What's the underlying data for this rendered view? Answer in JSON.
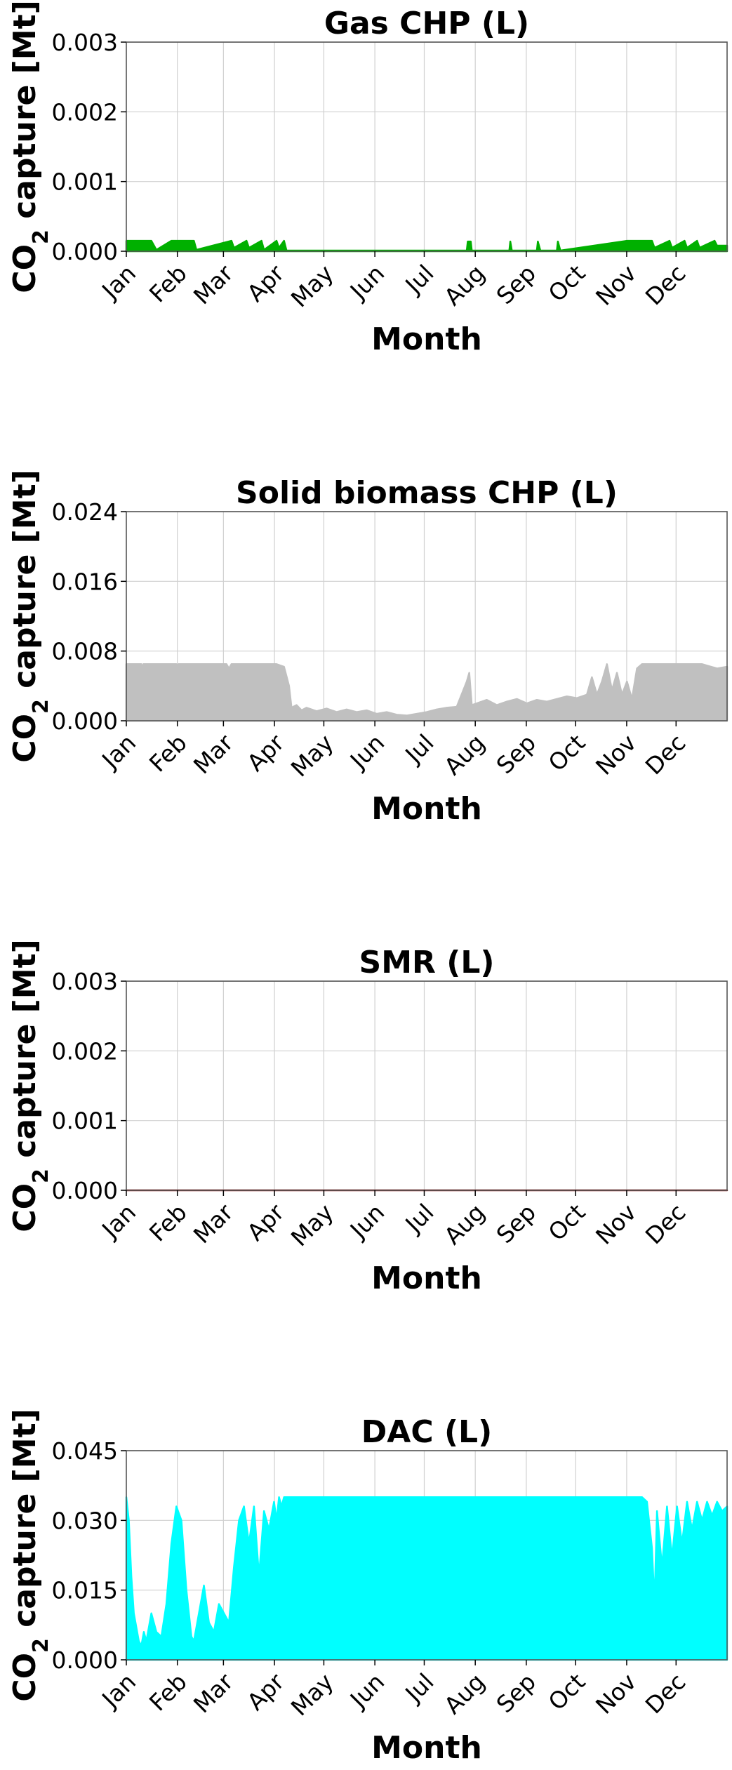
{
  "chart_data": [
    {
      "type": "area",
      "title": "Gas CHP (L)",
      "xlabel": "Month",
      "ylabel_parts": [
        "CO",
        "2",
        " capture [Mt]"
      ],
      "x_ticks": [
        "Jan",
        "Feb",
        "Mar",
        "Apr",
        "May",
        "Jun",
        "Jul",
        "Aug",
        "Sep",
        "Oct",
        "Nov",
        "Dec"
      ],
      "y_ticks": [
        "0.000",
        "0.001",
        "0.002",
        "0.003"
      ],
      "ylim": [
        0,
        0.003
      ],
      "grid": true,
      "color": "#00b000",
      "series": [
        {
          "x": [
            0,
            0.5,
            0.6,
            0.9,
            1.0,
            1.35,
            1.4,
            2.1,
            2.15,
            2.4,
            2.45,
            2.7,
            2.75,
            3.0,
            3.05,
            3.15,
            3.2,
            6.8,
            6.82,
            6.88,
            6.9,
            7.65,
            7.67,
            7.7,
            8.2,
            8.22,
            8.27,
            8.6,
            8.62,
            8.67,
            10.0,
            10.05,
            10.5,
            10.55,
            10.85,
            10.9,
            11.15,
            11.2,
            11.4,
            11.45,
            11.75,
            11.8,
            12.0
          ],
          "y": [
            0.00015,
            0.00015,
            2e-05,
            0.00015,
            0.00015,
            0.00015,
            2e-05,
            0.00015,
            5e-05,
            0.00015,
            5e-05,
            0.00015,
            2e-05,
            0.00015,
            5e-05,
            0.00015,
            1e-05,
            1e-05,
            0.00014,
            0.00014,
            1e-05,
            1e-05,
            0.00014,
            1e-05,
            1e-05,
            0.00014,
            1e-05,
            1e-05,
            0.00014,
            1e-05,
            0.00015,
            0.00015,
            0.00015,
            5e-05,
            0.00015,
            5e-05,
            0.00015,
            5e-05,
            0.00015,
            5e-05,
            0.00015,
            8e-05,
            8e-05
          ]
        }
      ]
    },
    {
      "type": "area",
      "title": "Solid biomass CHP (L)",
      "xlabel": "Month",
      "ylabel_parts": [
        "CO",
        "2",
        " capture [Mt]"
      ],
      "x_ticks": [
        "Jan",
        "Feb",
        "Mar",
        "Apr",
        "May",
        "Jun",
        "Jul",
        "Aug",
        "Sep",
        "Oct",
        "Nov",
        "Dec"
      ],
      "y_ticks": [
        "0.000",
        "0.008",
        "0.016",
        "0.024"
      ],
      "ylim": [
        0,
        0.024
      ],
      "grid": true,
      "color": "#c0c0c0",
      "series": [
        {
          "x": [
            0,
            0.3,
            0.32,
            0.34,
            1.0,
            1.02,
            1.04,
            2.0,
            2.05,
            2.1,
            3.0,
            3.15,
            3.25,
            3.3,
            3.4,
            3.5,
            3.6,
            3.8,
            4.0,
            4.2,
            4.4,
            4.6,
            4.8,
            5.0,
            5.2,
            5.4,
            5.6,
            5.8,
            6.0,
            6.2,
            6.4,
            6.6,
            6.8,
            6.85,
            6.9,
            7.0,
            7.2,
            7.4,
            7.6,
            7.8,
            8.0,
            8.2,
            8.4,
            8.6,
            8.8,
            9.0,
            9.2,
            9.3,
            9.4,
            9.5,
            9.6,
            9.7,
            9.8,
            9.9,
            10.0,
            10.1,
            10.2,
            10.3,
            10.6,
            10.9,
            11.2,
            11.5,
            11.8,
            12.0
          ],
          "y": [
            0.0065,
            0.0065,
            0.0058,
            0.0065,
            0.0065,
            0.006,
            0.0065,
            0.0065,
            0.006,
            0.0065,
            0.0065,
            0.0062,
            0.004,
            0.0015,
            0.0018,
            0.0012,
            0.0015,
            0.0011,
            0.0014,
            0.001,
            0.0013,
            0.001,
            0.0012,
            0.0008,
            0.001,
            0.0007,
            0.0006,
            0.0008,
            0.001,
            0.0013,
            0.0015,
            0.0016,
            0.0045,
            0.0055,
            0.0018,
            0.002,
            0.0024,
            0.0018,
            0.0022,
            0.0025,
            0.002,
            0.0024,
            0.0022,
            0.0025,
            0.0028,
            0.0026,
            0.003,
            0.005,
            0.003,
            0.0045,
            0.0065,
            0.0035,
            0.0055,
            0.003,
            0.0045,
            0.0025,
            0.006,
            0.0065,
            0.0065,
            0.0065,
            0.0065,
            0.0065,
            0.006,
            0.0062
          ]
        }
      ]
    },
    {
      "type": "area",
      "title": "SMR (L)",
      "xlabel": "Month",
      "ylabel_parts": [
        "CO",
        "2",
        " capture [Mt]"
      ],
      "x_ticks": [
        "Jan",
        "Feb",
        "Mar",
        "Apr",
        "May",
        "Jun",
        "Jul",
        "Aug",
        "Sep",
        "Oct",
        "Nov",
        "Dec"
      ],
      "y_ticks": [
        "0.000",
        "0.001",
        "0.002",
        "0.003"
      ],
      "ylim": [
        0,
        0.003
      ],
      "grid": true,
      "color": "#8b1a1a",
      "series": [
        {
          "x": [
            0,
            12
          ],
          "y": [
            0,
            0
          ]
        }
      ]
    },
    {
      "type": "area",
      "title": "DAC (L)",
      "xlabel": "Month",
      "ylabel_parts": [
        "CO",
        "2",
        " capture [Mt]"
      ],
      "x_ticks": [
        "Jan",
        "Feb",
        "Mar",
        "Apr",
        "May",
        "Jun",
        "Jul",
        "Aug",
        "Sep",
        "Oct",
        "Nov",
        "Dec"
      ],
      "y_ticks": [
        "0.000",
        "0.015",
        "0.030",
        "0.045"
      ],
      "ylim": [
        0,
        0.045
      ],
      "grid": true,
      "color": "#00ffff",
      "series": [
        {
          "x": [
            0,
            0.05,
            0.1,
            0.15,
            0.2,
            0.25,
            0.3,
            0.35,
            0.4,
            0.5,
            0.6,
            0.7,
            0.8,
            0.9,
            1.0,
            1.1,
            1.2,
            1.3,
            1.35,
            1.45,
            1.55,
            1.65,
            1.75,
            1.85,
            1.95,
            2.05,
            2.15,
            2.25,
            2.35,
            2.45,
            2.55,
            2.65,
            2.75,
            2.85,
            2.95,
            3.0,
            3.05,
            3.1,
            3.15,
            3.2,
            4.0,
            5.0,
            6.0,
            7.0,
            8.0,
            9.0,
            10.0,
            10.3,
            10.4,
            10.5,
            10.55,
            10.6,
            10.7,
            10.8,
            10.9,
            11.0,
            11.1,
            11.2,
            11.3,
            11.4,
            11.5,
            11.6,
            11.7,
            11.8,
            11.9,
            12.0
          ],
          "y": [
            0.035,
            0.03,
            0.018,
            0.01,
            0.007,
            0.004,
            0.003,
            0.006,
            0.004,
            0.01,
            0.006,
            0.005,
            0.012,
            0.025,
            0.033,
            0.03,
            0.015,
            0.005,
            0.004,
            0.01,
            0.016,
            0.008,
            0.006,
            0.012,
            0.01,
            0.008,
            0.02,
            0.03,
            0.033,
            0.025,
            0.033,
            0.018,
            0.032,
            0.028,
            0.034,
            0.03,
            0.035,
            0.033,
            0.035,
            0.035,
            0.035,
            0.035,
            0.035,
            0.035,
            0.035,
            0.035,
            0.035,
            0.035,
            0.034,
            0.024,
            0.012,
            0.032,
            0.02,
            0.033,
            0.022,
            0.033,
            0.025,
            0.034,
            0.028,
            0.034,
            0.03,
            0.034,
            0.031,
            0.034,
            0.032,
            0.033
          ]
        }
      ]
    }
  ]
}
